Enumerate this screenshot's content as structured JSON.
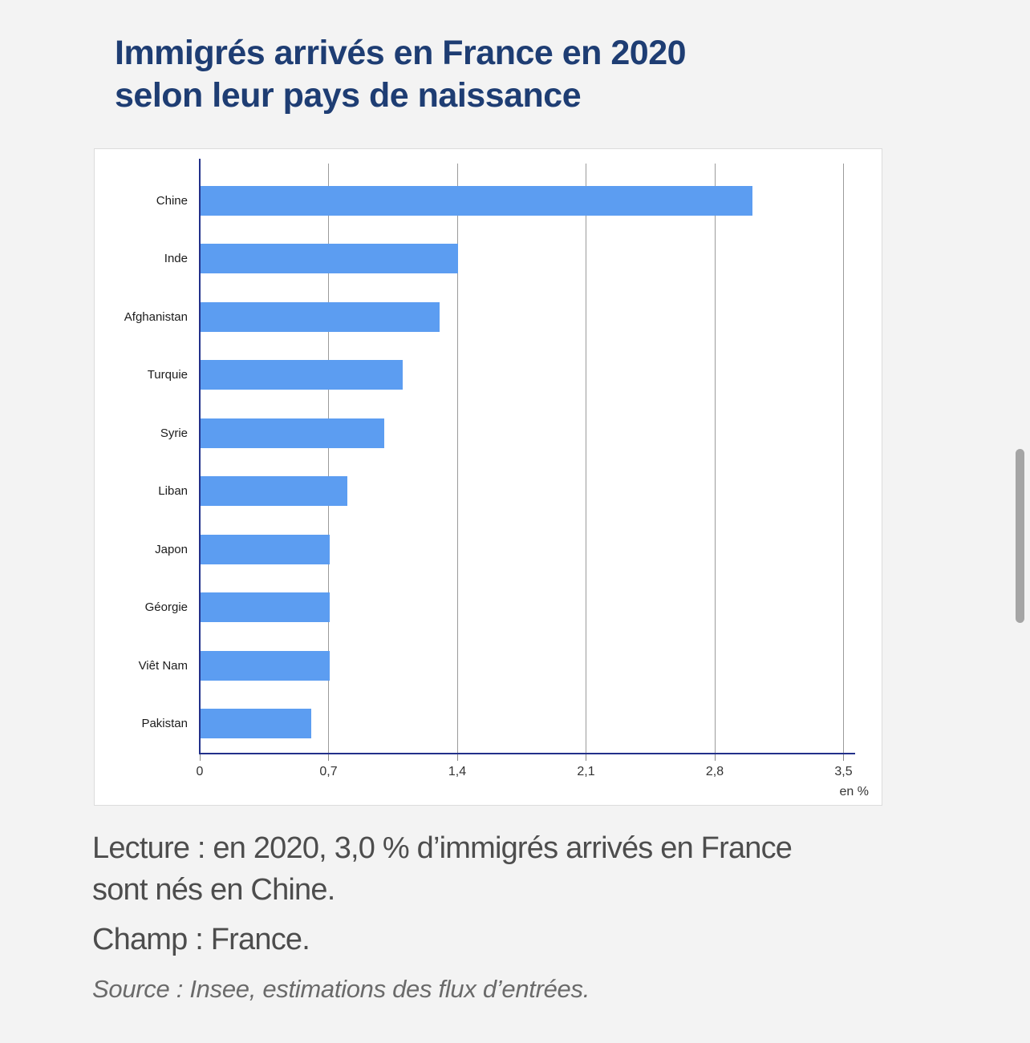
{
  "title": {
    "lines": [
      "Immigrés arrivés en France en 2020",
      "selon leur pays de naissance"
    ]
  },
  "chart_data": {
    "type": "bar",
    "orientation": "horizontal",
    "title": "Immigrés arrivés en France en 2020 selon leur pays de naissance",
    "categories": [
      "Chine",
      "Inde",
      "Afghanistan",
      "Turquie",
      "Syrie",
      "Liban",
      "Japon",
      "Géorgie",
      "Viêt Nam",
      "Pakistan"
    ],
    "values": [
      3.0,
      1.4,
      1.3,
      1.1,
      1.0,
      0.8,
      0.7,
      0.7,
      0.7,
      0.6
    ],
    "xlabel": "en %",
    "xlim": [
      0,
      3.5
    ],
    "x_ticks": [
      0,
      0.7,
      1.4,
      2.1,
      2.8,
      3.5
    ],
    "x_tick_labels": [
      "0",
      "0,7",
      "1,4",
      "2,1",
      "2,8",
      "3,5"
    ],
    "grid": true,
    "legend": "none",
    "bar_color": "#5c9df1",
    "axis_color": "#22308a",
    "gridline_color": "#9b9b9b"
  },
  "notes": {
    "lecture_lines": [
      "Lecture : en 2020, 3,0 % d’immigrés arrivés en France",
      "sont nés en Chine."
    ],
    "champ": "Champ : France.",
    "source": "Source : Insee, estimations des flux d’entrées."
  }
}
